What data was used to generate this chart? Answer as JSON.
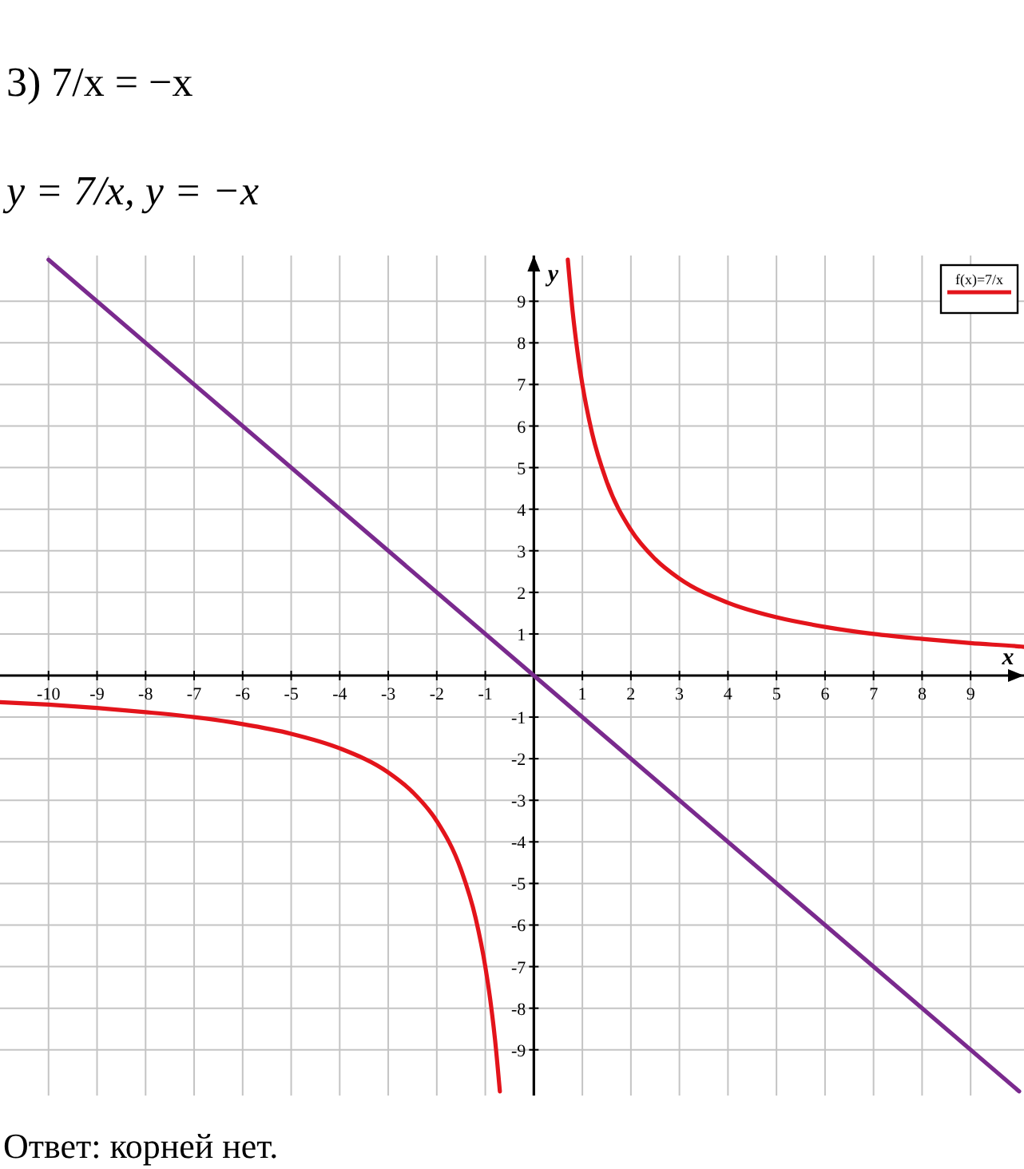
{
  "chart_data": {
    "type": "line",
    "title": "3) 7/x = −x",
    "subtitle": "y = 7/x,   y = −x",
    "xlabel": "x",
    "ylabel": "y",
    "annotations": [
      "Ответ: корней нет."
    ],
    "xlim": [
      -11,
      10.1
    ],
    "ylim": [
      -10.1,
      10.1
    ],
    "xticks": [
      -10,
      -9,
      -8,
      -7,
      -6,
      -5,
      -4,
      -3,
      -2,
      -1,
      1,
      2,
      3,
      4,
      5,
      6,
      7,
      8,
      9
    ],
    "yticks": [
      -9,
      -8,
      -7,
      -6,
      -5,
      -4,
      -3,
      -2,
      -1,
      1,
      2,
      3,
      4,
      5,
      6,
      7,
      8,
      9
    ],
    "grid": true,
    "legend": "top right",
    "line_style": "solid",
    "marker": "none",
    "series": [
      {
        "name": "f(x)=7/x",
        "color": "#e3141b",
        "x": [
          -11,
          -10,
          -9,
          -8,
          -7,
          -6,
          -5,
          -4,
          -3,
          -2.5,
          -2,
          -1.5,
          -1.2,
          -1,
          -0.9,
          -0.8,
          -0.7,
          null,
          0.7,
          0.8,
          0.9,
          1,
          1.2,
          1.5,
          2,
          2.5,
          3,
          4,
          5,
          6,
          7,
          8,
          9,
          10,
          10.1
        ],
        "values": [
          -0.64,
          -0.7,
          -0.78,
          -0.88,
          -1,
          -1.17,
          -1.4,
          -1.75,
          -2.33,
          -2.8,
          -3.5,
          -4.67,
          -5.83,
          -7,
          -7.78,
          -8.75,
          -10,
          null,
          10,
          8.75,
          7.78,
          7,
          5.83,
          4.67,
          3.5,
          2.8,
          2.33,
          1.75,
          1.4,
          1.17,
          1,
          0.88,
          0.78,
          0.7,
          0.69
        ]
      },
      {
        "color": "#7a2a8e",
        "x": [
          -10,
          10
        ],
        "values": [
          10,
          -10
        ]
      }
    ]
  }
}
